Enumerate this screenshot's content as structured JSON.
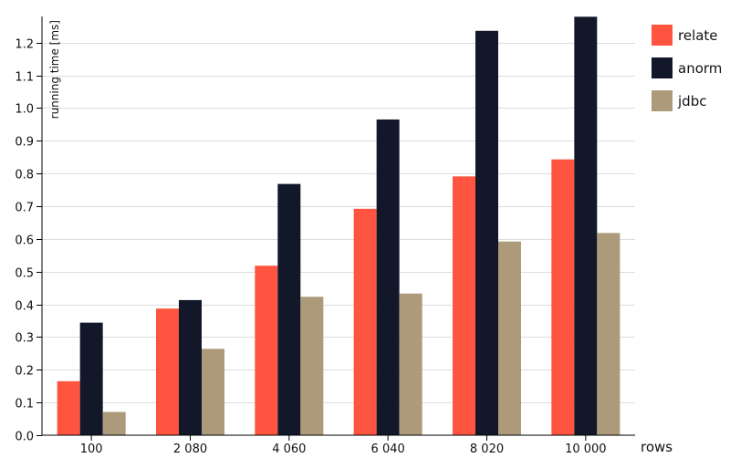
{
  "chart_data": {
    "type": "bar",
    "xlabel": "rows",
    "ylabel": "running time [ms]",
    "categories": [
      "100",
      "2 080",
      "4 060",
      "6 040",
      "8 020",
      "10 000"
    ],
    "ylim": [
      0,
      1.28
    ],
    "yticks": [
      0.0,
      0.1,
      0.2,
      0.3,
      0.4,
      0.5,
      0.6,
      0.7,
      0.8,
      0.9,
      1.0,
      1.1,
      1.2
    ],
    "grid": true,
    "legend_position": "top-right",
    "series": [
      {
        "name": "relate",
        "color": "#ff543f",
        "values": [
          0.165,
          0.387,
          0.518,
          0.692,
          0.791,
          0.843
        ]
      },
      {
        "name": "anorm",
        "color": "#121829",
        "values": [
          0.344,
          0.413,
          0.768,
          0.965,
          1.236,
          1.279
        ]
      },
      {
        "name": "jdbc",
        "color": "#ac9a7b",
        "values": [
          0.071,
          0.264,
          0.423,
          0.433,
          0.592,
          0.618
        ]
      }
    ]
  }
}
